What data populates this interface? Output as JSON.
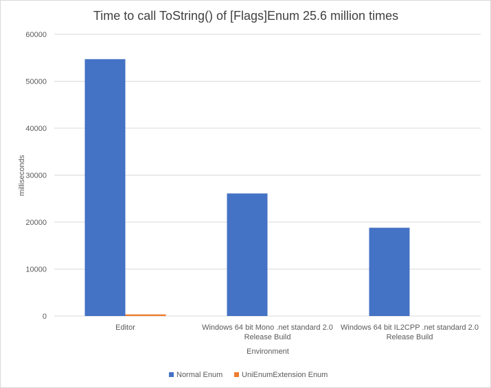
{
  "chart_data": {
    "type": "bar",
    "title": "Time to call ToString() of [Flags]Enum 25.6 million times",
    "xlabel": "Environment",
    "ylabel": "milliseconds",
    "ylim": [
      0,
      60000
    ],
    "yticks": [
      0,
      10000,
      20000,
      30000,
      40000,
      50000,
      60000
    ],
    "grid": true,
    "legend_position": "bottom",
    "categories": [
      [
        "Editor"
      ],
      [
        "Windows 64 bit Mono .net standard 2.0",
        "Release Build"
      ],
      [
        "Windows 64 bit IL2CPP .net standard 2.0",
        "Release Build"
      ]
    ],
    "series": [
      {
        "name": "Normal Enum",
        "color": "#4472c4",
        "values": [
          54700,
          26100,
          18800
        ]
      },
      {
        "name": "UniEnumExtension Enum",
        "color": "#ed7d31",
        "values": [
          350,
          0,
          0
        ]
      }
    ]
  }
}
